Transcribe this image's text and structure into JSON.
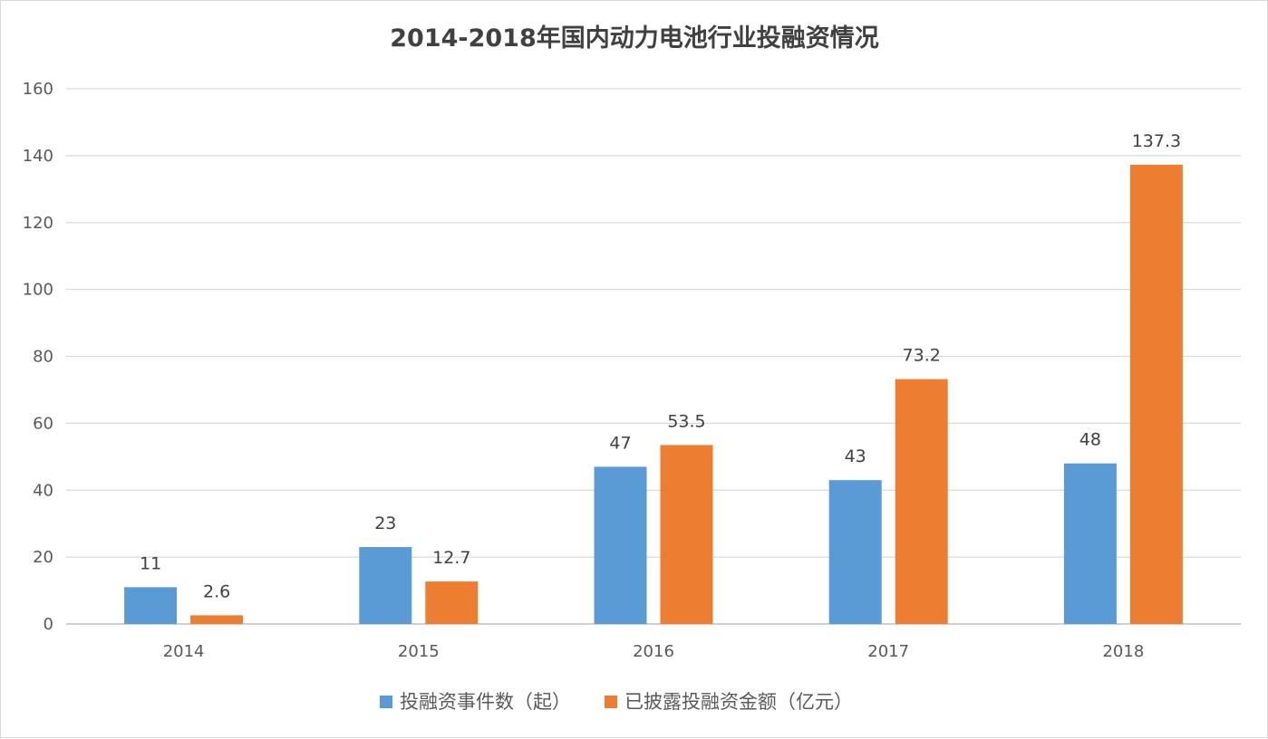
{
  "chart_data": {
    "type": "bar",
    "title": "2014-2018年国内动力电池行业投融资情况",
    "categories": [
      "2014",
      "2015",
      "2016",
      "2017",
      "2018"
    ],
    "series": [
      {
        "name": "投融资事件数（起）",
        "values": [
          11,
          23,
          47,
          43,
          48
        ],
        "labels": [
          "11",
          "23",
          "47",
          "43",
          "48"
        ],
        "color": "#5b9bd5"
      },
      {
        "name": "已披露投融资金额（亿元）",
        "values": [
          2.6,
          12.7,
          53.5,
          73.2,
          137.3
        ],
        "labels": [
          "2.6",
          "12.7",
          "53.5",
          "73.2",
          "137.3"
        ],
        "color": "#ed7d31"
      }
    ],
    "ylim": [
      0,
      160
    ],
    "yticks": [
      "0",
      "20",
      "40",
      "60",
      "80",
      "100",
      "120",
      "140",
      "160"
    ],
    "grid": true,
    "legend_position": "bottom"
  }
}
